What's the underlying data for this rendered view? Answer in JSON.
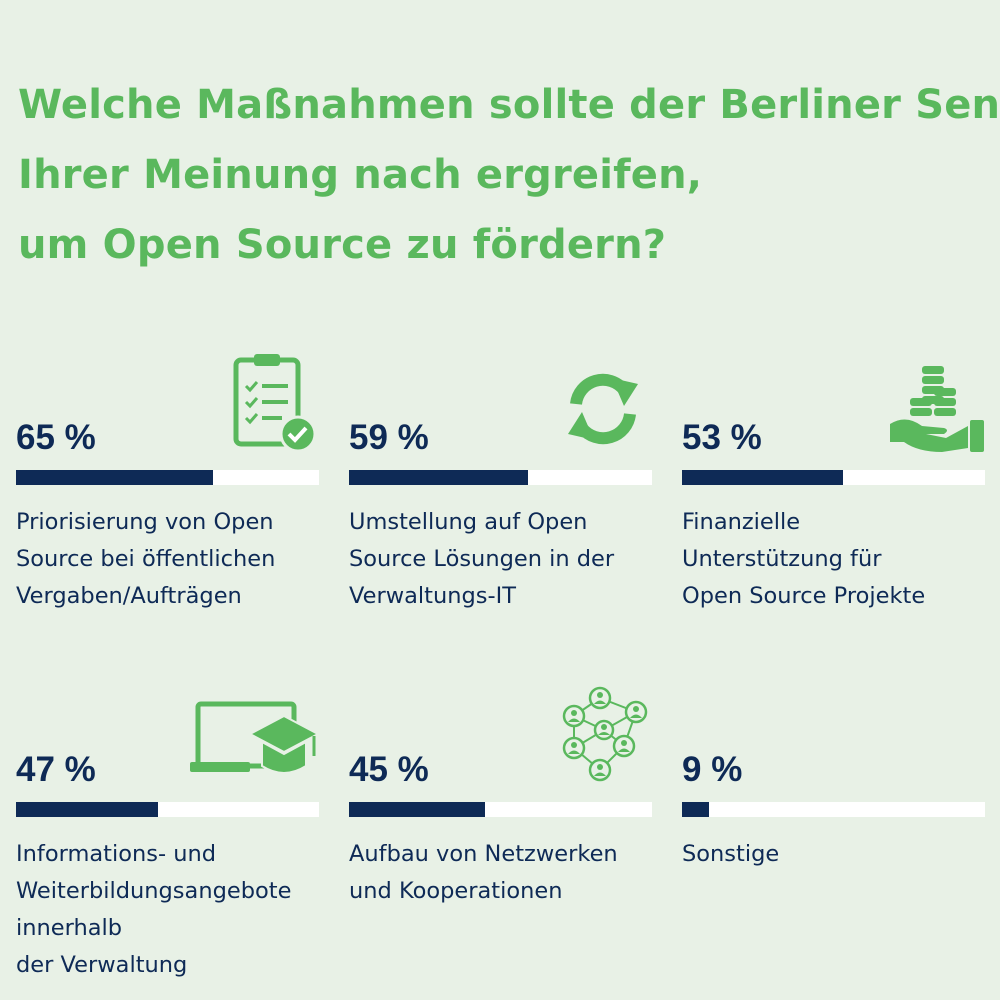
{
  "title": {
    "lines": [
      "Welche Maßnahmen sollte der Berliner Senat",
      "Ihrer Meinung nach ergreifen,",
      "um Open Source zu fördern?"
    ]
  },
  "colors": {
    "background": "#e8f1e6",
    "accent": "#5ab85d",
    "navy": "#0e2a56",
    "track": "#ffffff"
  },
  "chart_data": {
    "type": "bar",
    "title": "Welche Maßnahmen sollte der Berliner Senat Ihrer Meinung nach ergreifen, um Open Source zu fördern?",
    "unit": "%",
    "ylim": [
      0,
      100
    ],
    "categories": [
      "Priorisierung von Open Source bei öffentlichen Vergaben/Aufträgen",
      "Umstellung auf Open Source Lösungen in der Verwaltungs-IT",
      "Finanzielle Unterstützung für Open Source Projekte",
      "Informations- und Weiterbildungsangebote innerhalb der Verwaltung",
      "Aufbau von Netzwerken und Kooperationen",
      "Sonstige"
    ],
    "values": [
      65,
      59,
      53,
      47,
      45,
      9
    ]
  },
  "items": [
    {
      "value": 65,
      "pct_text": "65 %",
      "icon": "clipboard-check-icon",
      "label_lines": [
        "Priorisierung von Open",
        "Source bei öffentlichen",
        "Vergaben/Aufträgen"
      ]
    },
    {
      "value": 59,
      "pct_text": "59 %",
      "icon": "refresh-arrows-icon",
      "label_lines": [
        "Umstellung auf Open",
        "Source Lösungen in der",
        "Verwaltungs-IT"
      ]
    },
    {
      "value": 53,
      "pct_text": "53 %",
      "icon": "hand-coins-icon",
      "label_lines": [
        "Finanzielle",
        "Unterstützung für",
        "Open Source Projekte"
      ]
    },
    {
      "value": 47,
      "pct_text": "47 %",
      "icon": "laptop-graduation-cap-icon",
      "label_lines": [
        "Informations- und",
        "Weiterbildungsangebote",
        "innerhalb",
        "der Verwaltung"
      ]
    },
    {
      "value": 45,
      "pct_text": "45 %",
      "icon": "people-network-icon",
      "label_lines": [
        "Aufbau von Netzwerken",
        "und Kooperationen"
      ]
    },
    {
      "value": 9,
      "pct_text": "9 %",
      "icon": "",
      "label_lines": [
        "Sonstige"
      ]
    }
  ]
}
